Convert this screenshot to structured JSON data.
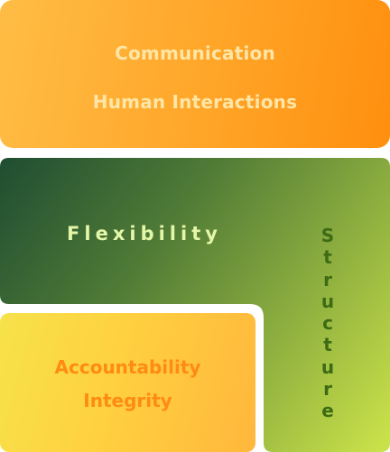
{
  "top": {
    "line1": "Communication",
    "line2": "Human Interactions"
  },
  "middle": {
    "horizontal_label": "Flexibility",
    "vertical_label": "Structure"
  },
  "bottom": {
    "line1": "Accountability",
    "line2": "Integrity"
  },
  "colors": {
    "orange": "#ffa528",
    "dark_green": "#1f4d32",
    "light_green": "#c6dc48",
    "yellow": "#f6e24a",
    "accent_text": "#ff8a14"
  }
}
